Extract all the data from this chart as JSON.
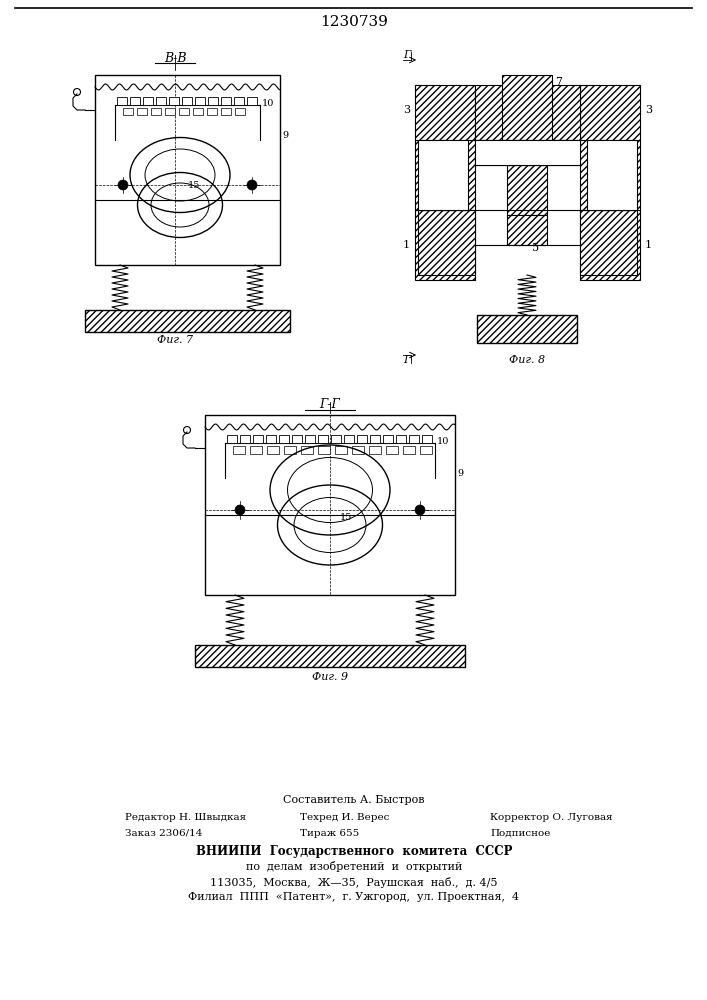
{
  "patent_number": "1230739",
  "background_color": "#ffffff",
  "line_color": "#000000",
  "fig7_label": "Фиг. 7",
  "fig8_label": "Фиг. 8",
  "fig9_label": "Фиг. 9",
  "section_bb": "В-В",
  "section_gg": "Г-Г",
  "footer_line1": "Составитель А. Быстров",
  "footer_line2_left": "Редактор Н. Швыдкая",
  "footer_line2_mid": "Техред И. Верес",
  "footer_line2_right": "Корректор О. Луговая",
  "footer_line3_left": "Заказ 2306/14",
  "footer_line3_mid": "Тираж 655",
  "footer_line3_right": "Подписное",
  "footer_line4": "ВНИИПИ  Государственного  комитета  СССР",
  "footer_line5": "по  делам  изобретений  и  открытий",
  "footer_line6": "113035,  Москва,  Ж—35,  Раушская  наб.,  д. 4/5",
  "footer_line7": "Филиал  ППП  «Патент»,  г. Ужгород,  ул. Проектная,  4"
}
